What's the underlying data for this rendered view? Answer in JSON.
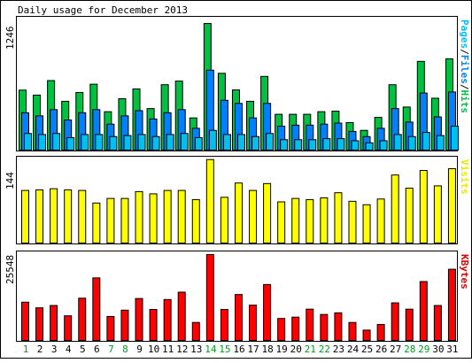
{
  "chart_data": {
    "type": "bar",
    "title": "Daily usage for December 2013",
    "categories": [
      "1",
      "2",
      "3",
      "4",
      "5",
      "6",
      "7",
      "8",
      "9",
      "10",
      "11",
      "12",
      "13",
      "14",
      "15",
      "16",
      "17",
      "18",
      "19",
      "20",
      "21",
      "22",
      "23",
      "24",
      "25",
      "26",
      "27",
      "28",
      "29",
      "30",
      "31"
    ],
    "weekend_days": [
      "1",
      "7",
      "8",
      "14",
      "15",
      "21",
      "22",
      "28",
      "29"
    ],
    "panels": [
      {
        "id": "hits",
        "max_label": "1246",
        "ymax": 1246,
        "side_label_parts": [
          {
            "text": "Pages",
            "color": "#00c0f0"
          },
          {
            "text": "/",
            "color": "#0a0a0a"
          },
          {
            "text": "Files",
            "color": "#0080ff"
          },
          {
            "text": "/",
            "color": "#0a0a0a"
          },
          {
            "text": "Hits",
            "color": "#00c040"
          }
        ],
        "series": [
          {
            "name": "Hits",
            "color": "#00c040",
            "values": [
              578,
              530,
              670,
              470,
              555,
              635,
              370,
              495,
              590,
              400,
              630,
              665,
              310,
              1220,
              740,
              580,
              470,
              710,
              345,
              345,
              345,
              370,
              375,
              265,
              190,
              315,
              630,
              415,
              855,
              500,
              880
            ]
          },
          {
            "name": "Files",
            "color": "#0080ff",
            "values": [
              360,
              330,
              390,
              290,
              360,
              390,
              250,
              330,
              380,
              300,
              360,
              390,
              210,
              770,
              480,
              450,
              310,
              450,
              230,
              240,
              240,
              250,
              260,
              180,
              130,
              210,
              400,
              270,
              550,
              320,
              560
            ]
          },
          {
            "name": "Pages",
            "color": "#00c0f0",
            "values": [
              160,
              150,
              160,
              120,
              150,
              150,
              130,
              140,
              150,
              130,
              150,
              160,
              120,
              190,
              150,
              150,
              130,
              160,
              100,
              100,
              100,
              110,
              110,
              90,
              70,
              90,
              150,
              130,
              170,
              140,
              230
            ]
          }
        ]
      },
      {
        "id": "visits",
        "max_label": "144",
        "ymax": 144,
        "side_label_parts": [
          {
            "text": "Visits",
            "color": "#e8e800"
          }
        ],
        "series": [
          {
            "name": "Visits",
            "color": "#ffff00",
            "values": [
              92,
              93,
              95,
              93,
              92,
              70,
              78,
              78,
              90,
              86,
              92,
              92,
              76,
              146,
              80,
              105,
              92,
              104,
              72,
              78,
              76,
              79,
              88,
              73,
              67,
              77,
              119,
              96,
              127,
              100,
              130
            ]
          }
        ]
      },
      {
        "id": "kbytes",
        "max_label": "25548",
        "ymax": 25548,
        "side_label_parts": [
          {
            "text": "KBytes",
            "color": "#e00000"
          }
        ],
        "series": [
          {
            "name": "KBytes",
            "color": "#ff0000",
            "values": [
              11500,
              9800,
              10500,
              7400,
              12700,
              18800,
              7200,
              9100,
              12600,
              9300,
              12300,
              14500,
              5400,
              25800,
              9300,
              13800,
              10600,
              16800,
              6600,
              7000,
              9400,
              7800,
              8300,
              5400,
              3100,
              4800,
              11300,
              9400,
              17700,
              10500,
              21400
            ]
          }
        ]
      }
    ]
  }
}
